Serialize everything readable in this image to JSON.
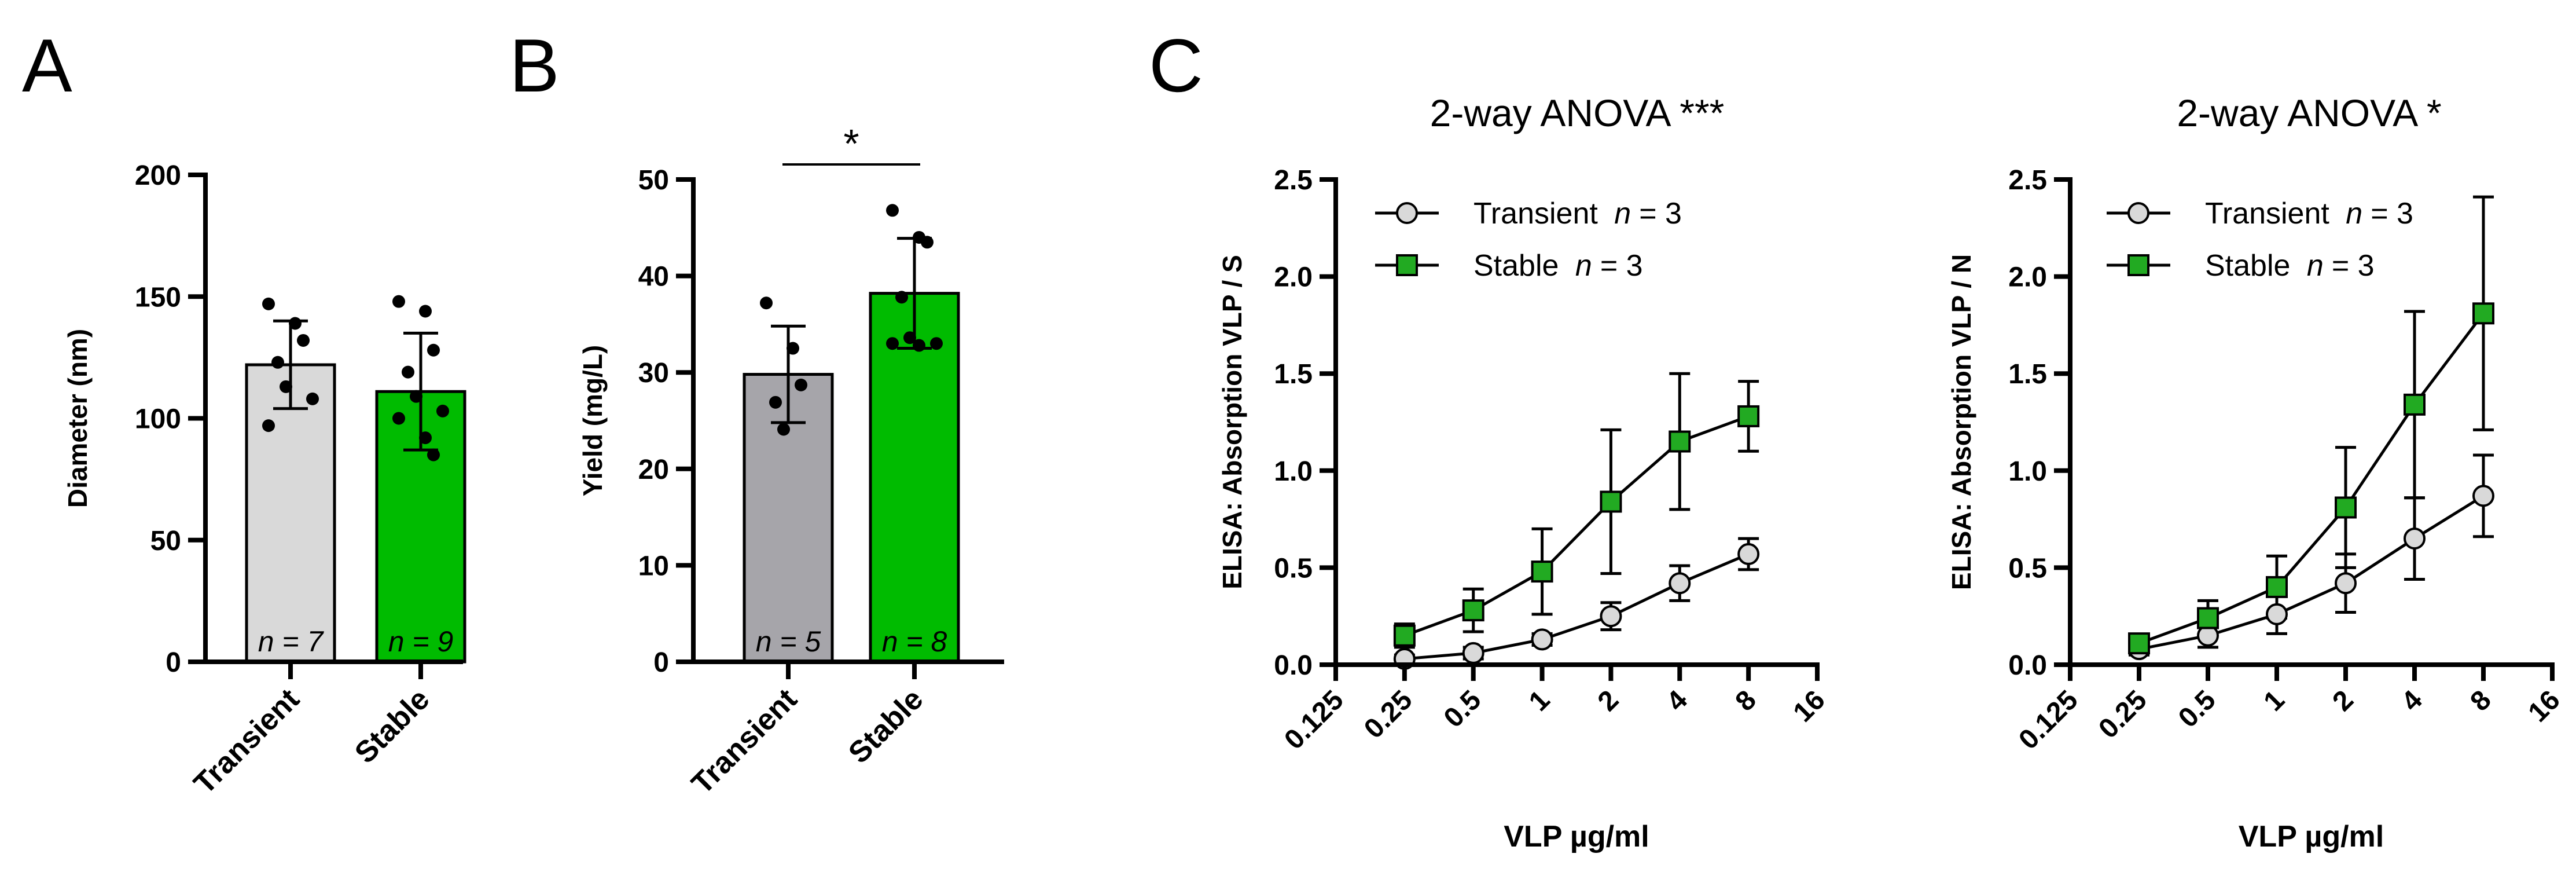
{
  "panels": {
    "A": "A",
    "B": "B",
    "C": "C"
  },
  "colors": {
    "transient_A": "#d9d9d9",
    "transient_B": "#a6a5aa",
    "stable": "#00bb00",
    "transient_marker": "#d9d9d9",
    "stable_marker": "#22aa22"
  },
  "chart_data": [
    {
      "id": "A",
      "type": "bar",
      "categories": [
        "Transient",
        "Stable"
      ],
      "ylabel": "Diameter (nm)",
      "ylim": [
        0,
        200
      ],
      "yticks": [
        "0",
        "50",
        "100",
        "150",
        "200"
      ],
      "series": [
        {
          "values": [
            122,
            111
          ],
          "errors": [
            18,
            24
          ],
          "n_labels": [
            "n = 7",
            "n = 9"
          ],
          "points": [
            [
              147,
              139,
              132,
              123,
              113,
              108,
              97
            ],
            [
              148,
              144,
              128,
              119,
              109,
              103,
              100,
              92,
              85
            ]
          ]
        }
      ],
      "legend": false,
      "grid": false
    },
    {
      "id": "B",
      "type": "bar",
      "categories": [
        "Transient",
        "Stable"
      ],
      "ylabel": "Yield (mg/L)",
      "ylim": [
        0,
        50
      ],
      "yticks": [
        "0",
        "10",
        "20",
        "30",
        "40",
        "50"
      ],
      "series": [
        {
          "values": [
            29.8,
            38.2
          ],
          "errors": [
            5.0,
            5.7
          ],
          "n_labels": [
            "n = 5",
            "n = 8"
          ],
          "points": [
            [
              37.2,
              32.5,
              28.7,
              26.9,
              24.1
            ],
            [
              46.8,
              44.0,
              43.5,
              37.8,
              33.6,
              33.0,
              33.0,
              32.8
            ]
          ]
        }
      ],
      "significance": "*",
      "legend": false,
      "grid": false
    },
    {
      "id": "C1",
      "type": "line",
      "title": "2-way ANOVA ***",
      "xlabel": "VLP µg/ml",
      "ylabel": "ELISA: Absorption VLP / S",
      "xscale": "log2",
      "xlim": [
        0.125,
        16
      ],
      "xticks": [
        "0.125",
        "0.25",
        "0.5",
        "1",
        "2",
        "4",
        "8",
        "16"
      ],
      "ylim": [
        0,
        2.5
      ],
      "yticks": [
        "0.0",
        "0.5",
        "1.0",
        "1.5",
        "2.0",
        "2.5"
      ],
      "x": [
        0.25,
        0.5,
        1,
        2,
        4,
        8
      ],
      "series": [
        {
          "name": "Transient n = 3",
          "legend_text": "Transient ",
          "legend_n": "n",
          "legend_eq": " = 3",
          "values": [
            0.03,
            0.06,
            0.13,
            0.25,
            0.42,
            0.57
          ],
          "errors": [
            0.02,
            0.03,
            0.03,
            0.07,
            0.09,
            0.08
          ]
        },
        {
          "name": "Stable n = 3",
          "legend_text": "Stable ",
          "legend_n": "n",
          "legend_eq": " = 3",
          "values": [
            0.15,
            0.28,
            0.48,
            0.84,
            1.15,
            1.28
          ],
          "errors": [
            0.06,
            0.11,
            0.22,
            0.37,
            0.35,
            0.18
          ]
        }
      ],
      "legend": "top-left",
      "grid": false
    },
    {
      "id": "C2",
      "type": "line",
      "title": "2-way ANOVA *",
      "xlabel": "VLP µg/ml",
      "ylabel": "ELISA: Absorption VLP / N",
      "xscale": "log2",
      "xlim": [
        0.125,
        16
      ],
      "xticks": [
        "0.125",
        "0.25",
        "0.5",
        "1",
        "2",
        "4",
        "8",
        "16"
      ],
      "ylim": [
        0,
        2.5
      ],
      "yticks": [
        "0.0",
        "0.5",
        "1.0",
        "1.5",
        "2.0",
        "2.5"
      ],
      "x": [
        0.25,
        0.5,
        1,
        2,
        4,
        8
      ],
      "series": [
        {
          "name": "Transient n = 3",
          "legend_text": "Transient ",
          "legend_n": "n",
          "legend_eq": " = 3",
          "values": [
            0.08,
            0.15,
            0.26,
            0.42,
            0.65,
            0.87
          ],
          "errors": [
            0.03,
            0.06,
            0.1,
            0.15,
            0.21,
            0.21
          ]
        },
        {
          "name": "Stable n = 3",
          "legend_text": "Stable ",
          "legend_n": "n",
          "legend_eq": " = 3",
          "values": [
            0.11,
            0.24,
            0.4,
            0.81,
            1.34,
            1.81
          ],
          "errors": [
            0.02,
            0.09,
            0.16,
            0.31,
            0.48,
            0.6
          ]
        }
      ],
      "legend": "top-left",
      "grid": false
    }
  ]
}
